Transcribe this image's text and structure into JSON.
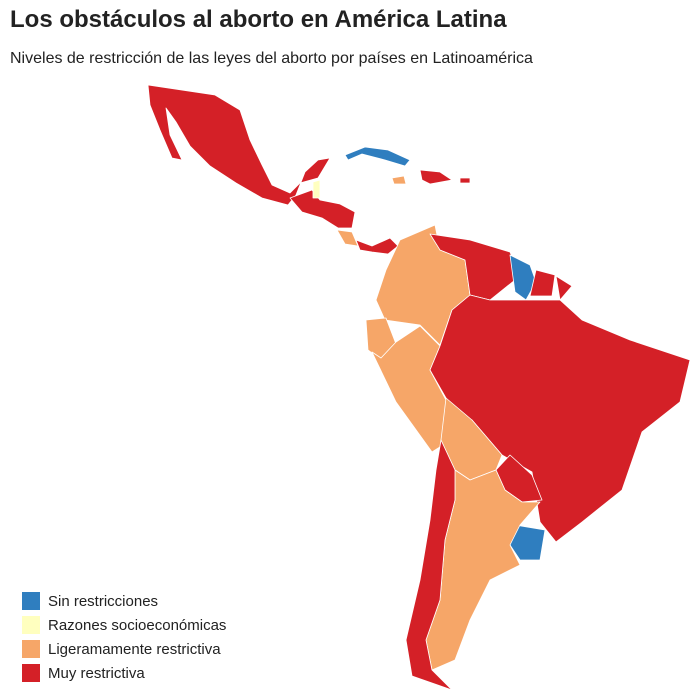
{
  "header": {
    "title": "Los obstáculos al aborto en América Latina",
    "subtitle": "Niveles de restricción de las leyes del aborto por países en Latinoamérica"
  },
  "legend": [
    {
      "label": "Sin restricciones",
      "color": "#2f7ebf"
    },
    {
      "label": "Razones socioeconómicas",
      "color": "#ffffbf"
    },
    {
      "label": "Ligeramamente restrictiva",
      "color": "#f6a668"
    },
    {
      "label": "Muy restrictiva",
      "color": "#d42027"
    }
  ]
}
